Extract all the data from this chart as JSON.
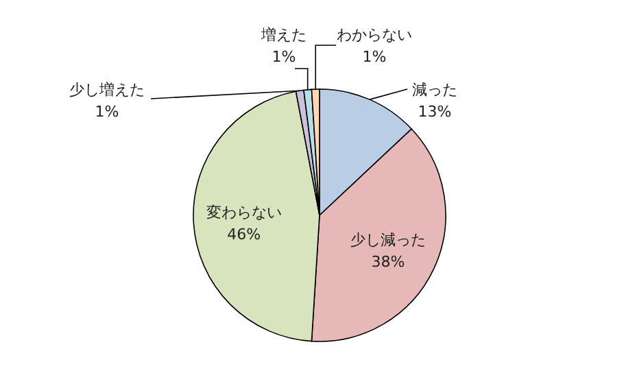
{
  "chart_data": {
    "type": "pie",
    "categories": [
      "減った",
      "少し減った",
      "変わらない",
      "少し増えた",
      "増えた",
      "わからない"
    ],
    "values": [
      13,
      38,
      46,
      1,
      1,
      1
    ],
    "value_labels": [
      "13%",
      "38%",
      "46%",
      "1%",
      "1%",
      "1%"
    ],
    "colors": [
      "#b9cde5",
      "#e6b9b8",
      "#d7e4bd",
      "#ccc1da",
      "#b7dee8",
      "#fcd5b5"
    ],
    "legend": false
  }
}
